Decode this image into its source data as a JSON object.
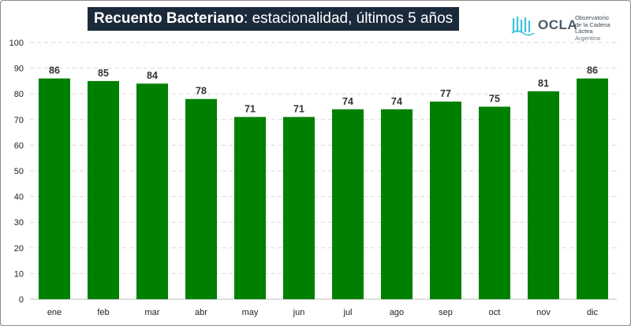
{
  "header": {
    "title_bold": "Recuento Bacteriano",
    "title_rest": ": estacionalidad, últimos 5 años"
  },
  "logo": {
    "name": "OCLA",
    "line1": "Observatorio",
    "line2": "de la Cadena Láctea",
    "line3": "Argentina",
    "color": "#3cc3d8"
  },
  "chart_data": {
    "type": "bar",
    "categories": [
      "ene",
      "feb",
      "mar",
      "abr",
      "may",
      "jun",
      "jul",
      "ago",
      "sep",
      "oct",
      "nov",
      "dic"
    ],
    "values": [
      86,
      85,
      84,
      78,
      71,
      71,
      74,
      74,
      77,
      75,
      81,
      86
    ],
    "ylim": [
      0,
      100
    ],
    "yticks": [
      0,
      10,
      20,
      30,
      40,
      50,
      60,
      70,
      80,
      90,
      100
    ],
    "grid": true,
    "data_labels": true,
    "bar_color": "#008000"
  }
}
